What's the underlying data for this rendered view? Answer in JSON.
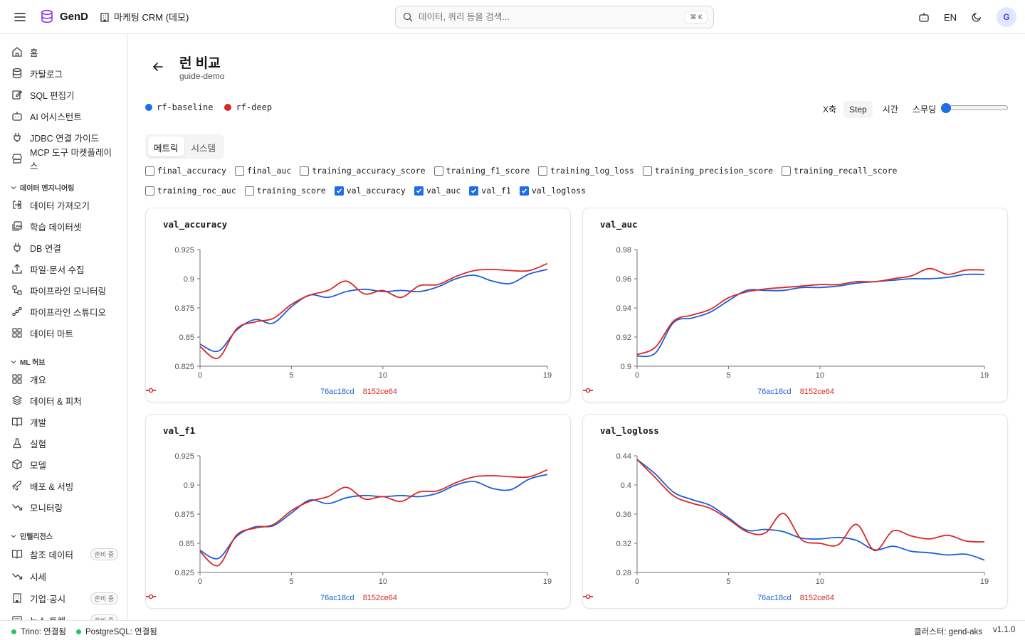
{
  "header": {
    "app_name": "GenD",
    "project": "마케팅 CRM (데모)",
    "search_placeholder": "데이터, 쿼리 등을 검색...",
    "shortcut": "⌘ K",
    "lang": "EN",
    "avatar": "G"
  },
  "sidebar": {
    "top_items": [
      {
        "label": "홈",
        "icon": "home-icon"
      },
      {
        "label": "카탈로그",
        "icon": "database-icon"
      },
      {
        "label": "SQL 편집기",
        "icon": "edit-icon"
      },
      {
        "label": "AI 어시스턴트",
        "icon": "bot-icon"
      },
      {
        "label": "JDBC 연결 가이드",
        "icon": "plug-icon"
      },
      {
        "label": "MCP 도구 마켓플레이스",
        "icon": "store-icon"
      }
    ],
    "section_data": "데이터 엔지니어링",
    "data_items": [
      {
        "label": "데이터 가져오기",
        "icon": "import-icon"
      },
      {
        "label": "학습 데이터셋",
        "icon": "images-icon"
      },
      {
        "label": "DB 연결",
        "icon": "plug-icon"
      },
      {
        "label": "파일·문서 수집",
        "icon": "upload-icon"
      },
      {
        "label": "파이프라인 모니터링",
        "icon": "workflow-icon"
      },
      {
        "label": "파이프라인 스튜디오",
        "icon": "nodes-icon"
      },
      {
        "label": "데이터 마트",
        "icon": "grid-icon"
      }
    ],
    "section_ml": "ML 허브",
    "ml_items": [
      {
        "label": "개요",
        "icon": "grid-icon"
      },
      {
        "label": "데이터 & 피처",
        "icon": "layers-icon"
      },
      {
        "label": "개발",
        "icon": "book-icon"
      },
      {
        "label": "실험",
        "icon": "flask-icon"
      },
      {
        "label": "모델",
        "icon": "box-icon"
      },
      {
        "label": "배포 & 서빙",
        "icon": "rocket-icon"
      },
      {
        "label": "모니터링",
        "icon": "trend-icon"
      }
    ],
    "section_intel": "인텔리전스",
    "intel_items": [
      {
        "label": "참조 데이터",
        "icon": "book-icon",
        "badge": "준비 중"
      },
      {
        "label": "시세",
        "icon": "trend-icon",
        "badge": ""
      },
      {
        "label": "기업·공시",
        "icon": "building-icon",
        "badge": "준비 중"
      },
      {
        "label": "뉴스·트렌",
        "icon": "news-icon",
        "badge": "준비 중"
      }
    ]
  },
  "footer": {
    "trino": "Trino: 연결됨",
    "postgres": "PostgreSQL: 연결됨",
    "cluster": "클러스터: gend-aks",
    "version": "v1.1.0"
  },
  "page": {
    "title": "런 비교",
    "subtitle": "guide-demo",
    "runs": [
      {
        "name": "rf-baseline",
        "color": "#1d6ee8"
      },
      {
        "name": "rf-deep",
        "color": "#dc2626"
      }
    ],
    "x_axis_label": "X축",
    "x_axis_options": [
      "Step",
      "시간"
    ],
    "x_axis_selected": "Step",
    "smoothing_label": "스무딩",
    "smoothing_value": 0,
    "tabs": [
      "메트릭",
      "시스템"
    ],
    "active_tab": "메트릭",
    "metrics_row1": [
      {
        "name": "final_accuracy",
        "checked": false
      },
      {
        "name": "final_auc",
        "checked": false
      },
      {
        "name": "training_accuracy_score",
        "checked": false
      },
      {
        "name": "training_f1_score",
        "checked": false
      },
      {
        "name": "training_log_loss",
        "checked": false
      },
      {
        "name": "training_precision_score",
        "checked": false
      },
      {
        "name": "training_recall_score",
        "checked": false
      }
    ],
    "metrics_row2": [
      {
        "name": "training_roc_auc",
        "checked": false
      },
      {
        "name": "training_score",
        "checked": false
      },
      {
        "name": "val_accuracy",
        "checked": true
      },
      {
        "name": "val_auc",
        "checked": true
      },
      {
        "name": "val_f1",
        "checked": true
      },
      {
        "name": "val_logloss",
        "checked": true
      }
    ]
  },
  "chart_data": [
    {
      "type": "line",
      "title": "val_accuracy",
      "x": [
        0,
        1,
        2,
        3,
        4,
        5,
        6,
        7,
        8,
        9,
        10,
        11,
        12,
        13,
        14,
        15,
        16,
        17,
        18,
        19
      ],
      "xticks": [
        0,
        5,
        10,
        19
      ],
      "ylim": [
        0.825,
        0.925
      ],
      "yticks": [
        "0.825",
        "0.85",
        "0.875",
        "0.9",
        "0.925"
      ],
      "series": [
        {
          "name": "76ac18cd",
          "color": "#1d5fd6",
          "values": [
            0.844,
            0.838,
            0.856,
            0.865,
            0.862,
            0.876,
            0.886,
            0.884,
            0.889,
            0.891,
            0.889,
            0.89,
            0.889,
            0.893,
            0.9,
            0.903,
            0.898,
            0.896,
            0.904,
            0.908
          ]
        },
        {
          "name": "8152ce64",
          "color": "#dc2626",
          "values": [
            0.842,
            0.832,
            0.857,
            0.863,
            0.866,
            0.878,
            0.886,
            0.89,
            0.898,
            0.887,
            0.89,
            0.884,
            0.894,
            0.895,
            0.902,
            0.907,
            0.908,
            0.907,
            0.907,
            0.913
          ]
        }
      ]
    },
    {
      "type": "line",
      "title": "val_auc",
      "x": [
        0,
        1,
        2,
        3,
        4,
        5,
        6,
        7,
        8,
        9,
        10,
        11,
        12,
        13,
        14,
        15,
        16,
        17,
        18,
        19
      ],
      "xticks": [
        0,
        5,
        10,
        19
      ],
      "ylim": [
        0.9,
        0.98
      ],
      "yticks": [
        "0.9",
        "0.92",
        "0.94",
        "0.96",
        "0.98"
      ],
      "series": [
        {
          "name": "76ac18cd",
          "color": "#1d5fd6",
          "values": [
            0.907,
            0.909,
            0.93,
            0.933,
            0.937,
            0.945,
            0.952,
            0.952,
            0.952,
            0.954,
            0.954,
            0.955,
            0.957,
            0.958,
            0.959,
            0.96,
            0.96,
            0.961,
            0.963,
            0.963
          ]
        },
        {
          "name": "8152ce64",
          "color": "#dc2626",
          "values": [
            0.908,
            0.913,
            0.931,
            0.935,
            0.939,
            0.947,
            0.951,
            0.953,
            0.954,
            0.955,
            0.956,
            0.956,
            0.958,
            0.958,
            0.96,
            0.962,
            0.967,
            0.963,
            0.966,
            0.966
          ]
        }
      ]
    },
    {
      "type": "line",
      "title": "val_f1",
      "x": [
        0,
        1,
        2,
        3,
        4,
        5,
        6,
        7,
        8,
        9,
        10,
        11,
        12,
        13,
        14,
        15,
        16,
        17,
        18,
        19
      ],
      "xticks": [
        0,
        5,
        10,
        19
      ],
      "ylim": [
        0.825,
        0.925
      ],
      "yticks": [
        "0.825",
        "0.85",
        "0.875",
        "0.9",
        "0.925"
      ],
      "series": [
        {
          "name": "76ac18cd",
          "color": "#1d5fd6",
          "values": [
            0.844,
            0.837,
            0.856,
            0.864,
            0.865,
            0.876,
            0.887,
            0.884,
            0.889,
            0.891,
            0.89,
            0.891,
            0.89,
            0.893,
            0.9,
            0.903,
            0.897,
            0.896,
            0.905,
            0.909
          ]
        },
        {
          "name": "8152ce64",
          "color": "#dc2626",
          "values": [
            0.843,
            0.831,
            0.857,
            0.863,
            0.866,
            0.878,
            0.886,
            0.89,
            0.898,
            0.888,
            0.89,
            0.886,
            0.894,
            0.895,
            0.902,
            0.907,
            0.908,
            0.907,
            0.907,
            0.913
          ]
        }
      ]
    },
    {
      "type": "line",
      "title": "val_logloss",
      "x": [
        0,
        1,
        2,
        3,
        4,
        5,
        6,
        7,
        8,
        9,
        10,
        11,
        12,
        13,
        14,
        15,
        16,
        17,
        18,
        19
      ],
      "xticks": [
        0,
        5,
        10,
        19
      ],
      "ylim": [
        0.28,
        0.44
      ],
      "yticks": [
        "0.28",
        "0.32",
        "0.36",
        "0.4",
        "0.44"
      ],
      "series": [
        {
          "name": "76ac18cd",
          "color": "#1d5fd6",
          "values": [
            0.435,
            0.415,
            0.39,
            0.38,
            0.372,
            0.355,
            0.338,
            0.339,
            0.336,
            0.327,
            0.326,
            0.328,
            0.324,
            0.311,
            0.316,
            0.309,
            0.307,
            0.304,
            0.305,
            0.297
          ]
        },
        {
          "name": "8152ce64",
          "color": "#dc2626",
          "values": [
            0.435,
            0.41,
            0.385,
            0.375,
            0.368,
            0.353,
            0.336,
            0.334,
            0.361,
            0.325,
            0.32,
            0.318,
            0.346,
            0.31,
            0.337,
            0.33,
            0.326,
            0.331,
            0.323,
            0.322
          ]
        }
      ]
    }
  ]
}
